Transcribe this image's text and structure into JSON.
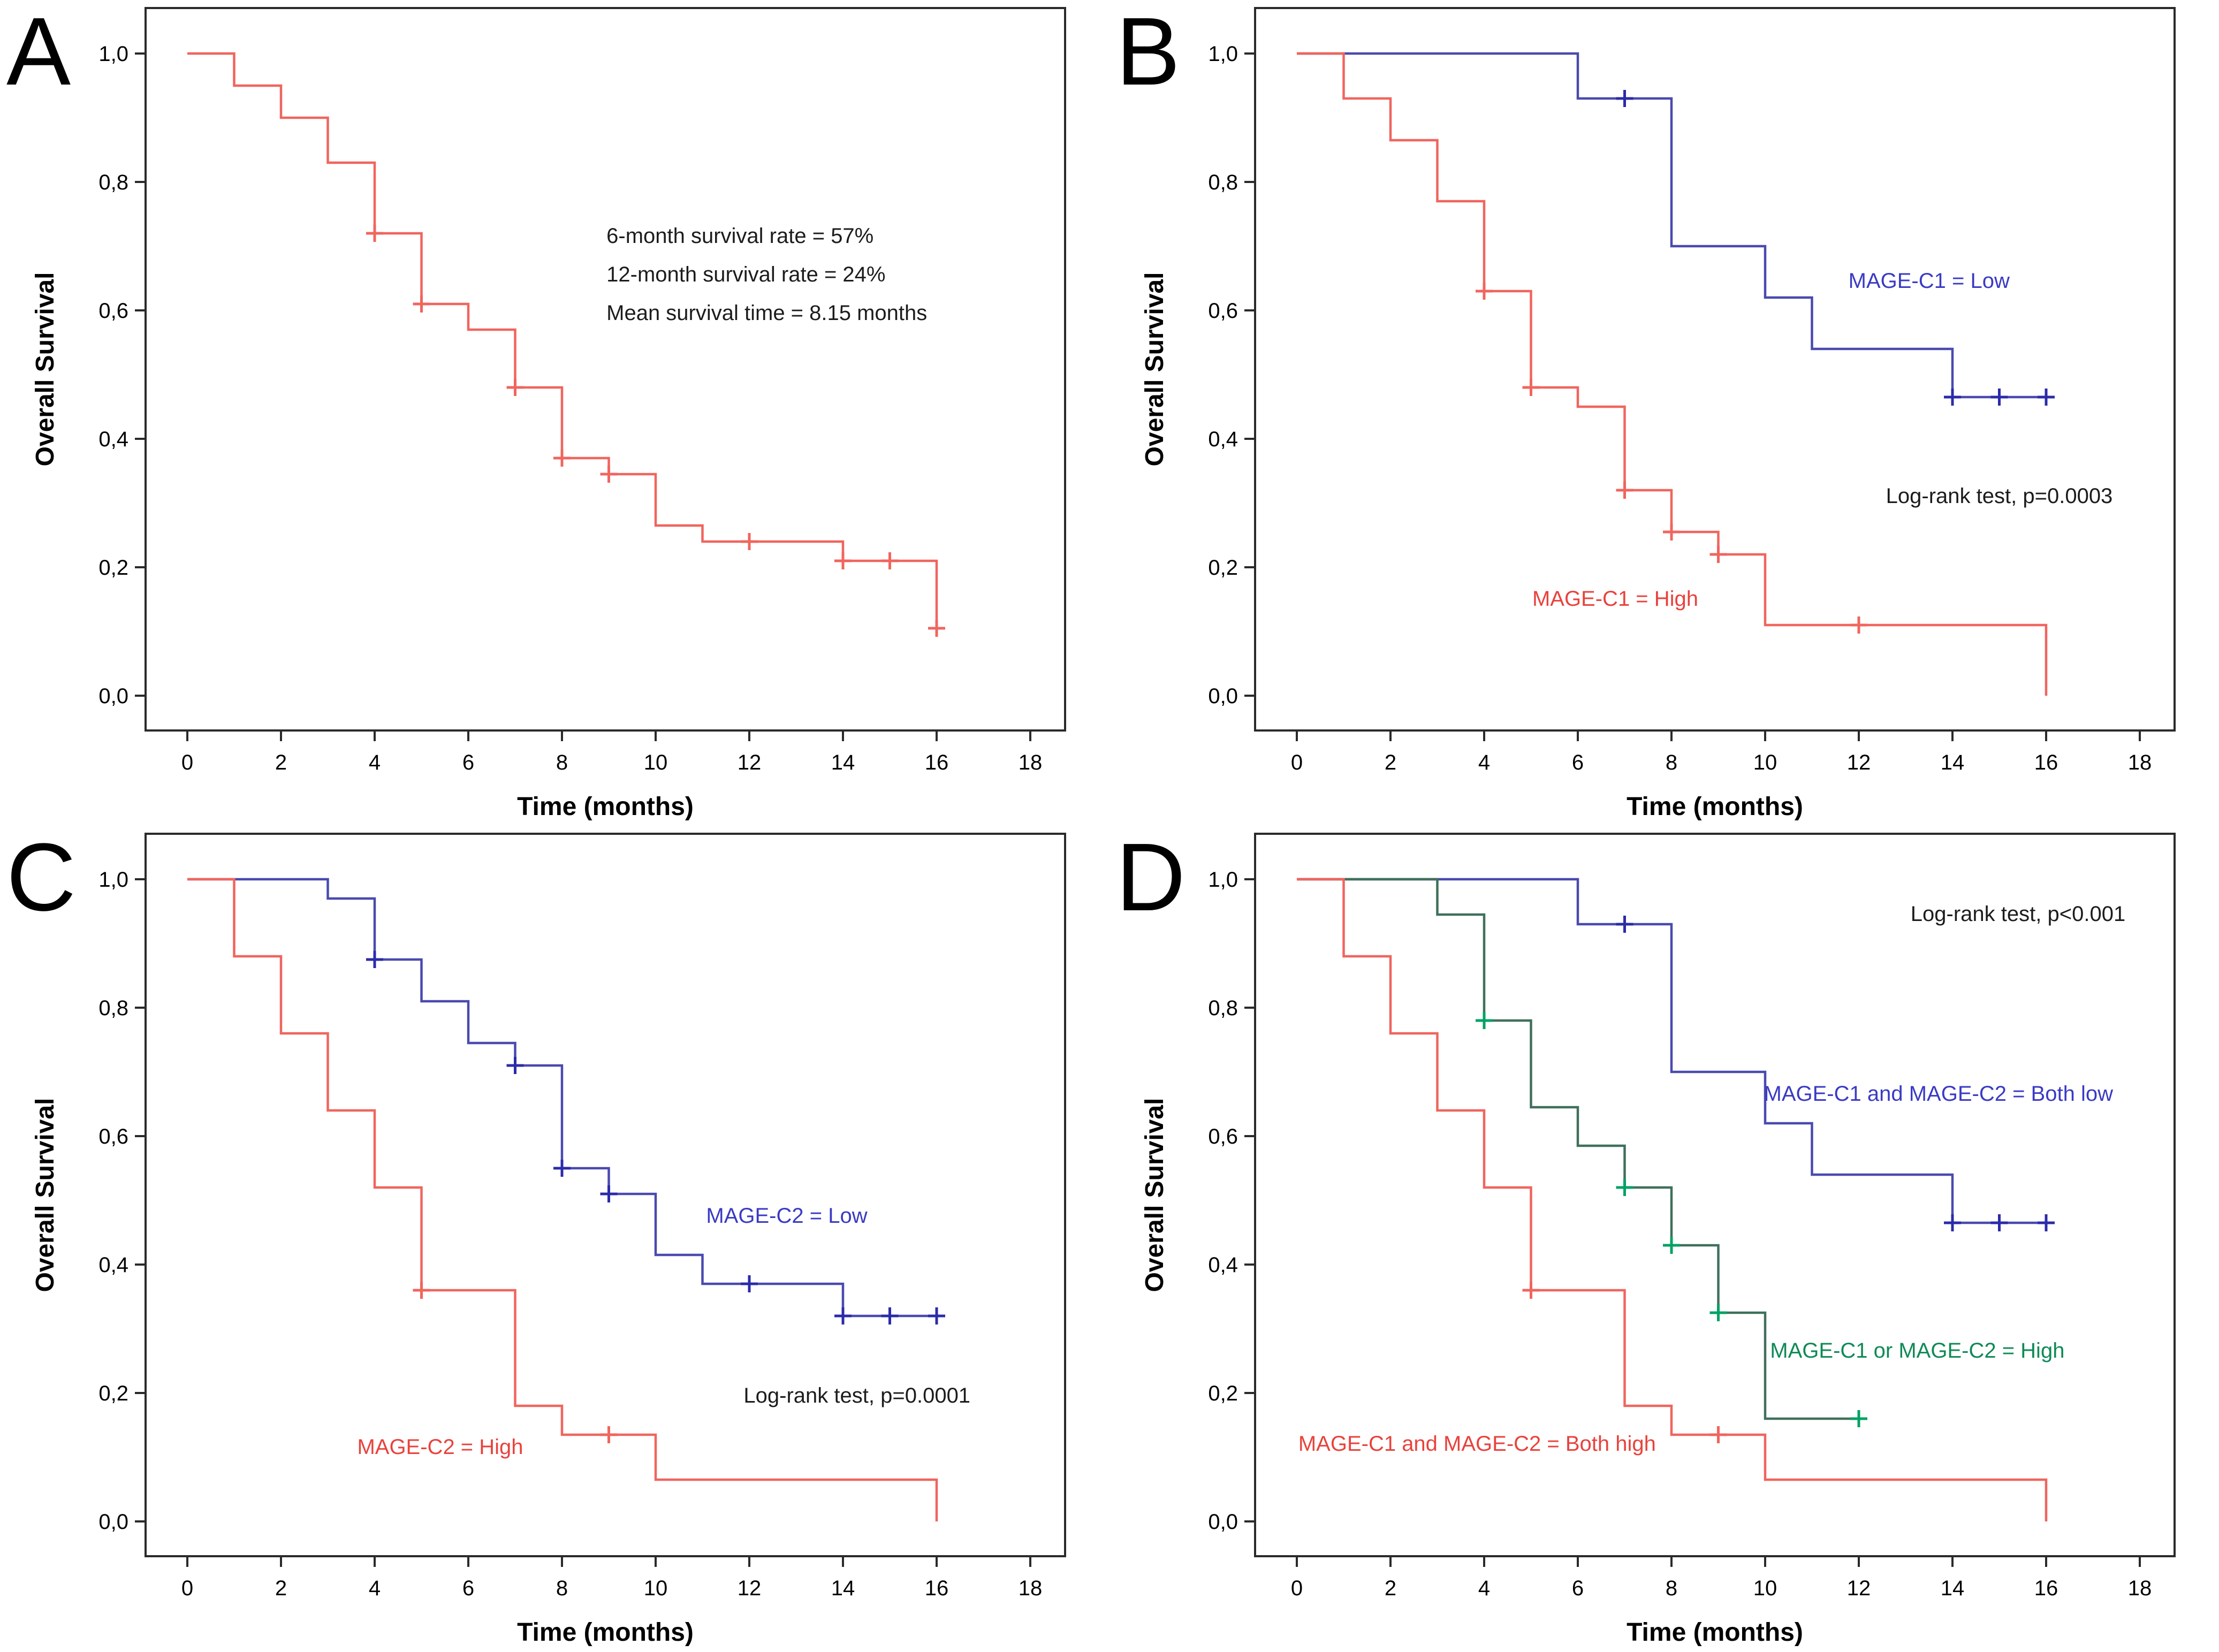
{
  "figure": {
    "background": "#ffffff",
    "xlabel": "Time (months)",
    "ylabel": "Overall Survival"
  },
  "chart_data": [
    {
      "type": "line",
      "subtype": "kaplan-meier-step",
      "panel": "A",
      "title": "",
      "xlabel": "Time (months)",
      "ylabel": "Overall Survival",
      "xlim": [
        -0.9,
        19.1
      ],
      "ylim": [
        -0.054,
        1.071
      ],
      "grid": false,
      "legend_position": "none",
      "x_ticks": [
        {
          "v": 0,
          "label": "0"
        },
        {
          "v": 2,
          "label": "2"
        },
        {
          "v": 4,
          "label": "4"
        },
        {
          "v": 6,
          "label": "6"
        },
        {
          "v": 8,
          "label": "8"
        },
        {
          "v": 10,
          "label": "10"
        },
        {
          "v": 12,
          "label": "12"
        },
        {
          "v": 14,
          "label": "14"
        },
        {
          "v": 16,
          "label": "16"
        },
        {
          "v": 18,
          "label": "18"
        }
      ],
      "y_ticks": [
        {
          "v": 0.0,
          "label": "0,0"
        },
        {
          "v": 0.2,
          "label": "0,2"
        },
        {
          "v": 0.4,
          "label": "0,4"
        },
        {
          "v": 0.6,
          "label": "0,6"
        },
        {
          "v": 0.8,
          "label": "0,8"
        },
        {
          "v": 1.0,
          "label": "1,0"
        }
      ],
      "series": [
        {
          "name": "Overall survival",
          "color": "#f0655e",
          "censor_color": "#f0655e",
          "steps": [
            [
              0,
              1.0
            ],
            [
              1,
              0.95
            ],
            [
              2,
              0.9
            ],
            [
              3,
              0.83
            ],
            [
              4,
              0.72
            ],
            [
              5,
              0.61
            ],
            [
              6,
              0.57
            ],
            [
              7,
              0.48
            ],
            [
              8,
              0.37
            ],
            [
              9,
              0.345
            ],
            [
              10,
              0.265
            ],
            [
              11,
              0.24
            ],
            [
              14,
              0.21
            ],
            [
              16,
              0.105
            ]
          ],
          "end": 16,
          "censors": [
            [
              4,
              0.72
            ],
            [
              5,
              0.61
            ],
            [
              7,
              0.48
            ],
            [
              8,
              0.37
            ],
            [
              9,
              0.345
            ],
            [
              12,
              0.24
            ],
            [
              14,
              0.21
            ],
            [
              15,
              0.21
            ],
            [
              16,
              0.105
            ]
          ],
          "label": null
        }
      ],
      "annotations": [
        {
          "text": "6-month survival rate = 57%",
          "x": 8.95,
          "y": 0.705,
          "anchor": "start",
          "color": "#1c1c1c"
        },
        {
          "text": "12-month survival rate = 24%",
          "x": 8.95,
          "y": 0.645,
          "anchor": "start",
          "color": "#1c1c1c"
        },
        {
          "text": "Mean survival time = 8.15 months",
          "x": 8.95,
          "y": 0.585,
          "anchor": "start",
          "color": "#1c1c1c"
        }
      ]
    },
    {
      "type": "line",
      "subtype": "kaplan-meier-step",
      "panel": "B",
      "title": "",
      "xlabel": "Time (months)",
      "ylabel": "Overall Survival",
      "xlim": [
        -0.9,
        19.1
      ],
      "ylim": [
        -0.054,
        1.071
      ],
      "grid": false,
      "legend_position": "inline-labels",
      "x_ticks": [
        {
          "v": 0,
          "label": "0"
        },
        {
          "v": 2,
          "label": "2"
        },
        {
          "v": 4,
          "label": "4"
        },
        {
          "v": 6,
          "label": "6"
        },
        {
          "v": 8,
          "label": "8"
        },
        {
          "v": 10,
          "label": "10"
        },
        {
          "v": 12,
          "label": "12"
        },
        {
          "v": 14,
          "label": "14"
        },
        {
          "v": 16,
          "label": "16"
        },
        {
          "v": 18,
          "label": "18"
        }
      ],
      "y_ticks": [
        {
          "v": 0.0,
          "label": "0,0"
        },
        {
          "v": 0.2,
          "label": "0,2"
        },
        {
          "v": 0.4,
          "label": "0,4"
        },
        {
          "v": 0.6,
          "label": "0,6"
        },
        {
          "v": 0.8,
          "label": "0,8"
        },
        {
          "v": 1.0,
          "label": "1,0"
        }
      ],
      "series": [
        {
          "name": "MAGE-C1 = Low",
          "color": "#4a4ab0",
          "censor_color": "#2b2baa",
          "steps": [
            [
              0,
              1.0
            ],
            [
              6,
              0.93
            ],
            [
              8,
              0.7
            ],
            [
              10,
              0.62
            ],
            [
              11,
              0.54
            ],
            [
              14,
              0.465
            ]
          ],
          "end": 16,
          "censors": [
            [
              7,
              0.93
            ],
            [
              14,
              0.465
            ],
            [
              15,
              0.465
            ],
            [
              16,
              0.465
            ]
          ],
          "label": {
            "text": "MAGE-C1 = Low",
            "x": 13.5,
            "y": 0.635,
            "color": "#3a3ac4"
          }
        },
        {
          "name": "MAGE-C1 = High",
          "color": "#f0655e",
          "censor_color": "#f0655e",
          "steps": [
            [
              0,
              1.0
            ],
            [
              1,
              0.93
            ],
            [
              2,
              0.865
            ],
            [
              3,
              0.77
            ],
            [
              4,
              0.63
            ],
            [
              5,
              0.48
            ],
            [
              6,
              0.45
            ],
            [
              7,
              0.32
            ],
            [
              8,
              0.255
            ],
            [
              9,
              0.22
            ],
            [
              10,
              0.11
            ],
            [
              16,
              0.0
            ]
          ],
          "end": 16,
          "censors": [
            [
              4,
              0.63
            ],
            [
              5,
              0.48
            ],
            [
              7,
              0.32
            ],
            [
              8,
              0.255
            ],
            [
              9,
              0.22
            ],
            [
              12,
              0.11
            ]
          ],
          "label": {
            "text": "MAGE-C1 = High",
            "x": 6.8,
            "y": 0.14,
            "color": "#e9423c"
          }
        }
      ],
      "annotations": [
        {
          "text": "Log-rank test, p=0.0003",
          "x": 15.0,
          "y": 0.3,
          "anchor": "middle",
          "color": "#1c1c1c"
        }
      ]
    },
    {
      "type": "line",
      "subtype": "kaplan-meier-step",
      "panel": "C",
      "title": "",
      "xlabel": "Time (months)",
      "ylabel": "Overall Survival",
      "xlim": [
        -0.9,
        19.1
      ],
      "ylim": [
        -0.054,
        1.071
      ],
      "grid": false,
      "legend_position": "inline-labels",
      "x_ticks": [
        {
          "v": 0,
          "label": "0"
        },
        {
          "v": 2,
          "label": "2"
        },
        {
          "v": 4,
          "label": "4"
        },
        {
          "v": 6,
          "label": "6"
        },
        {
          "v": 8,
          "label": "8"
        },
        {
          "v": 10,
          "label": "10"
        },
        {
          "v": 12,
          "label": "12"
        },
        {
          "v": 14,
          "label": "14"
        },
        {
          "v": 16,
          "label": "16"
        },
        {
          "v": 18,
          "label": "18"
        }
      ],
      "y_ticks": [
        {
          "v": 0.0,
          "label": "0,0"
        },
        {
          "v": 0.2,
          "label": "0,2"
        },
        {
          "v": 0.4,
          "label": "0,4"
        },
        {
          "v": 0.6,
          "label": "0,6"
        },
        {
          "v": 0.8,
          "label": "0,8"
        },
        {
          "v": 1.0,
          "label": "1,0"
        }
      ],
      "series": [
        {
          "name": "MAGE-C2 = Low",
          "color": "#4a4ab0",
          "censor_color": "#2b2baa",
          "steps": [
            [
              0,
              1.0
            ],
            [
              3,
              0.97
            ],
            [
              4,
              0.875
            ],
            [
              5,
              0.81
            ],
            [
              6,
              0.745
            ],
            [
              7,
              0.71
            ],
            [
              8,
              0.55
            ],
            [
              9,
              0.51
            ],
            [
              10,
              0.415
            ],
            [
              11,
              0.37
            ],
            [
              14,
              0.32
            ]
          ],
          "end": 16,
          "censors": [
            [
              4,
              0.875
            ],
            [
              7,
              0.71
            ],
            [
              8,
              0.55
            ],
            [
              9,
              0.51
            ],
            [
              12,
              0.37
            ],
            [
              14,
              0.32
            ],
            [
              15,
              0.32
            ],
            [
              16,
              0.32
            ]
          ],
          "label": {
            "text": "MAGE-C2 = Low",
            "x": 12.8,
            "y": 0.465,
            "color": "#3a3ac4"
          }
        },
        {
          "name": "MAGE-C2 = High",
          "color": "#f0655e",
          "censor_color": "#f0655e",
          "steps": [
            [
              0,
              1.0
            ],
            [
              1,
              0.88
            ],
            [
              2,
              0.76
            ],
            [
              3,
              0.64
            ],
            [
              4,
              0.52
            ],
            [
              5,
              0.36
            ],
            [
              7,
              0.18
            ],
            [
              8,
              0.135
            ],
            [
              10,
              0.065
            ],
            [
              16,
              0.0
            ]
          ],
          "end": 16,
          "censors": [
            [
              5,
              0.36
            ],
            [
              9,
              0.135
            ]
          ],
          "label": {
            "text": "MAGE-C2 = High",
            "x": 5.4,
            "y": 0.105,
            "color": "#e9423c"
          }
        }
      ],
      "annotations": [
        {
          "text": "Log-rank test, p=0.0001",
          "x": 14.3,
          "y": 0.185,
          "anchor": "middle",
          "color": "#1c1c1c"
        }
      ]
    },
    {
      "type": "line",
      "subtype": "kaplan-meier-step",
      "panel": "D",
      "title": "",
      "xlabel": "Time (months)",
      "ylabel": "Overall Survival",
      "xlim": [
        -0.9,
        19.1
      ],
      "ylim": [
        -0.054,
        1.071
      ],
      "grid": false,
      "legend_position": "inline-labels",
      "x_ticks": [
        {
          "v": 0,
          "label": "0"
        },
        {
          "v": 2,
          "label": "2"
        },
        {
          "v": 4,
          "label": "4"
        },
        {
          "v": 6,
          "label": "6"
        },
        {
          "v": 8,
          "label": "8"
        },
        {
          "v": 10,
          "label": "10"
        },
        {
          "v": 12,
          "label": "12"
        },
        {
          "v": 14,
          "label": "14"
        },
        {
          "v": 16,
          "label": "16"
        },
        {
          "v": 18,
          "label": "18"
        }
      ],
      "y_ticks": [
        {
          "v": 0.0,
          "label": "0,0"
        },
        {
          "v": 0.2,
          "label": "0,2"
        },
        {
          "v": 0.4,
          "label": "0,4"
        },
        {
          "v": 0.6,
          "label": "0,6"
        },
        {
          "v": 0.8,
          "label": "0,8"
        },
        {
          "v": 1.0,
          "label": "1,0"
        }
      ],
      "series": [
        {
          "name": "MAGE-C1 and MAGE-C2 = Both low",
          "color": "#4a4ab0",
          "censor_color": "#2b2baa",
          "steps": [
            [
              0,
              1.0
            ],
            [
              6,
              0.93
            ],
            [
              8,
              0.7
            ],
            [
              10,
              0.62
            ],
            [
              11,
              0.54
            ],
            [
              14,
              0.465
            ]
          ],
          "end": 16,
          "censors": [
            [
              7,
              0.93
            ],
            [
              14,
              0.465
            ],
            [
              15,
              0.465
            ],
            [
              16,
              0.465
            ]
          ],
          "label": {
            "text": "MAGE-C1 and MAGE-C2 = Both low",
            "x": 13.7,
            "y": 0.655,
            "color": "#3a3ac4"
          }
        },
        {
          "name": "MAGE-C1 or MAGE-C2 = High",
          "color": "#40705b",
          "censor_color": "#00a263",
          "steps": [
            [
              0,
              1.0
            ],
            [
              3,
              0.945
            ],
            [
              4,
              0.78
            ],
            [
              5,
              0.645
            ],
            [
              6,
              0.585
            ],
            [
              7,
              0.52
            ],
            [
              8,
              0.43
            ],
            [
              9,
              0.325
            ],
            [
              10,
              0.16
            ]
          ],
          "end": 12,
          "censors": [
            [
              4,
              0.78
            ],
            [
              7,
              0.52
            ],
            [
              8,
              0.43
            ],
            [
              9,
              0.325
            ],
            [
              12,
              0.16
            ]
          ],
          "label": {
            "text": "MAGE-C1 or MAGE-C2 = High",
            "x": 13.25,
            "y": 0.255,
            "color": "#0e8a56"
          }
        },
        {
          "name": "MAGE-C1 and MAGE-C2 = Both high",
          "color": "#f0655e",
          "censor_color": "#f0655e",
          "steps": [
            [
              0,
              1.0
            ],
            [
              1,
              0.88
            ],
            [
              2,
              0.76
            ],
            [
              3,
              0.64
            ],
            [
              4,
              0.52
            ],
            [
              5,
              0.36
            ],
            [
              7,
              0.18
            ],
            [
              8,
              0.135
            ],
            [
              10,
              0.065
            ],
            [
              16,
              0.0
            ]
          ],
          "end": 16,
          "censors": [
            [
              5,
              0.36
            ],
            [
              9,
              0.135
            ]
          ],
          "label": {
            "text": "MAGE-C1 and MAGE-C2 = Both high",
            "x": 3.85,
            "y": 0.11,
            "color": "#e9423c"
          }
        }
      ],
      "annotations": [
        {
          "text": "Log-rank test, p<0.001",
          "x": 15.4,
          "y": 0.935,
          "anchor": "middle",
          "color": "#1c1c1c"
        }
      ]
    }
  ]
}
